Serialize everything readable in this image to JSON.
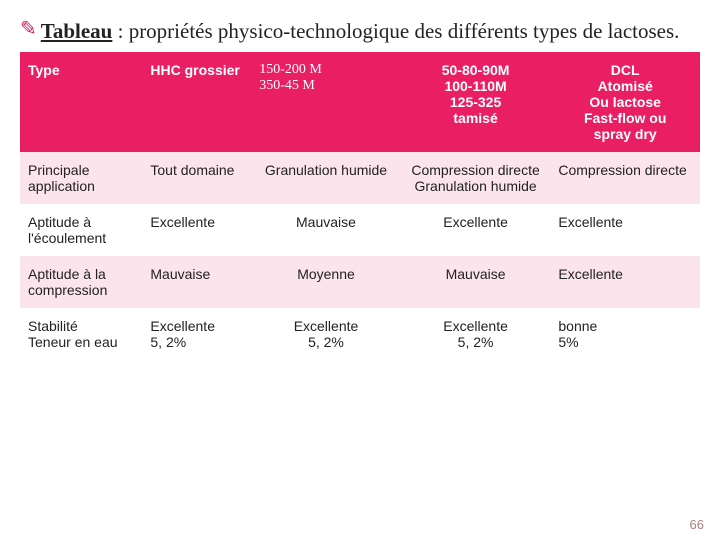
{
  "title": {
    "bullet": "✎",
    "label_bold": "Tableau",
    "label_rest": " : propriétés physico-technologique des différents types de lactoses."
  },
  "table": {
    "header": {
      "c1": "Type",
      "c2": "HHC grossier",
      "c3": "150-200 M\n350-45 M",
      "c4": "50-80-90M\n100-110M\n125-325\ntamisé",
      "c5": "DCL\nAtomisé\nOu lactose\nFast-flow ou\nspray dry"
    },
    "rows": [
      {
        "c1": "Principale application",
        "c2": "Tout domaine",
        "c3": "Granulation humide",
        "c4": "Compression directe Granulation humide",
        "c5": "Compression directe"
      },
      {
        "c1": "Aptitude à l'écoulement",
        "c2": "Excellente",
        "c3": "Mauvaise",
        "c4": "Excellente",
        "c5": "Excellente"
      },
      {
        "c1": "Aptitude à la compression",
        "c2": "Mauvaise",
        "c3": "Moyenne",
        "c4": "Mauvaise",
        "c5": "Excellente"
      },
      {
        "c1": "Stabilité\nTeneur en eau",
        "c2": "Excellente\n5, 2%",
        "c3": "Excellente\n5, 2%",
        "c4": "Excellente\n5, 2%",
        "c5": "bonne\n5%"
      }
    ],
    "col_widths": [
      "18%",
      "16%",
      "22%",
      "22%",
      "22%"
    ],
    "header_bg": "#e91e63",
    "header_fg": "#ffffff",
    "row_alt_bg": "#fce4ec",
    "row_plain_bg": "#ffffff"
  },
  "page_number": "66"
}
